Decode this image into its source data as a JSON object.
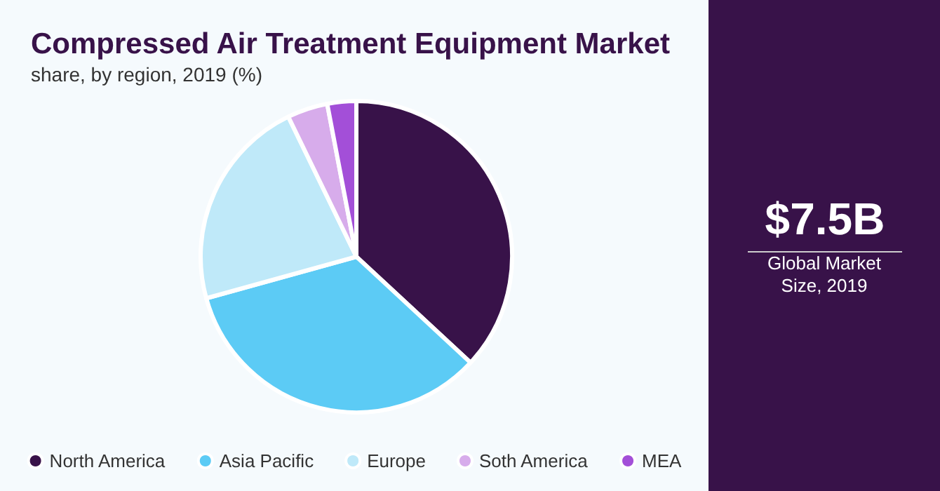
{
  "chart_data": {
    "type": "pie",
    "title": "Compressed Air Treatment Equipment Market",
    "subtitle": "share, by region, 2019 (%)",
    "categories": [
      "North America",
      "Asia Pacific",
      "Europe",
      "Soth America",
      "MEA"
    ],
    "values": [
      36.9,
      33.8,
      22.1,
      4.2,
      3.0
    ],
    "colors": [
      "#381249",
      "#5ccbf5",
      "#bfe9f9",
      "#d7aceb",
      "#a34fd8"
    ],
    "legend": "bottom",
    "annotations": [
      "$7.5B",
      "Global Market Size, 2019"
    ]
  }
}
